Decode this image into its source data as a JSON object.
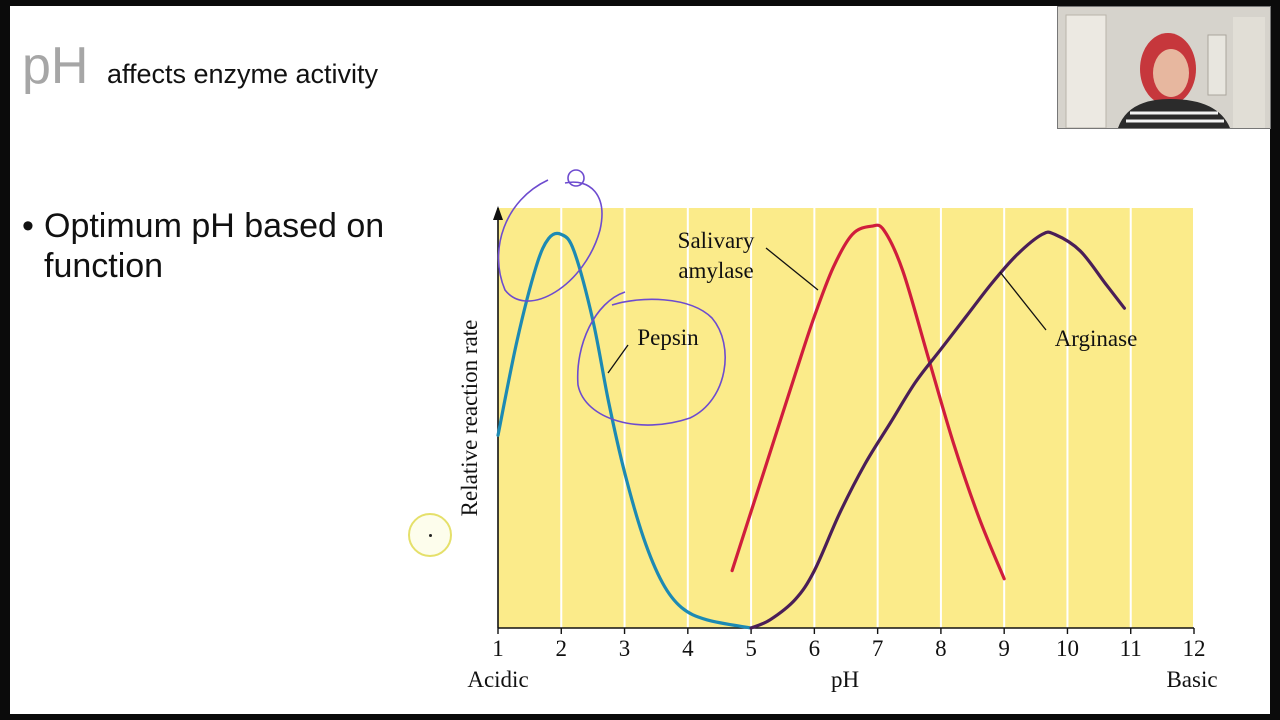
{
  "slide": {
    "title_ph": "pH",
    "title_rest": "affects enzyme activity",
    "bullet": "Optimum pH based on function"
  },
  "webcam": {
    "description": "presenter-webcam"
  },
  "colors": {
    "plot_bg": "#fbeb8a",
    "pepsin": "#1d8ab3",
    "amylase": "#d01d3c",
    "arginase": "#4a1e57",
    "annotation": "#6d4bcf"
  },
  "chart_data": {
    "type": "line",
    "title": "",
    "xlabel": "pH",
    "ylabel": "Relative reaction rate",
    "x_ticks": [
      1,
      2,
      3,
      4,
      5,
      6,
      7,
      8,
      9,
      10,
      11,
      12
    ],
    "x_ends": {
      "left": "Acidic",
      "right": "Basic"
    },
    "xlim": [
      1,
      12
    ],
    "ylim": [
      0,
      1
    ],
    "grid": "vertical",
    "series": [
      {
        "name": "Pepsin",
        "color": "#1d8ab3",
        "points": [
          [
            1.0,
            0.47
          ],
          [
            1.3,
            0.7
          ],
          [
            1.6,
            0.88
          ],
          [
            1.8,
            0.95
          ],
          [
            2.0,
            0.96
          ],
          [
            2.2,
            0.92
          ],
          [
            2.5,
            0.75
          ],
          [
            2.75,
            0.55
          ],
          [
            3.0,
            0.38
          ],
          [
            3.3,
            0.22
          ],
          [
            3.6,
            0.11
          ],
          [
            3.9,
            0.05
          ],
          [
            4.3,
            0.02
          ],
          [
            5.0,
            0.0
          ]
        ]
      },
      {
        "name": "Salivary amylase",
        "label_lines": [
          "Salivary",
          "amylase"
        ],
        "color": "#d01d3c",
        "points": [
          [
            4.7,
            0.14
          ],
          [
            5.2,
            0.38
          ],
          [
            5.7,
            0.62
          ],
          [
            6.0,
            0.76
          ],
          [
            6.3,
            0.88
          ],
          [
            6.6,
            0.96
          ],
          [
            6.9,
            0.98
          ],
          [
            7.1,
            0.97
          ],
          [
            7.4,
            0.87
          ],
          [
            7.8,
            0.66
          ],
          [
            8.2,
            0.45
          ],
          [
            8.6,
            0.27
          ],
          [
            9.0,
            0.12
          ]
        ]
      },
      {
        "name": "Arginase",
        "color": "#4a1e57",
        "points": [
          [
            5.0,
            0.0
          ],
          [
            5.3,
            0.02
          ],
          [
            5.7,
            0.07
          ],
          [
            6.0,
            0.14
          ],
          [
            6.4,
            0.28
          ],
          [
            6.8,
            0.4
          ],
          [
            7.2,
            0.5
          ],
          [
            7.6,
            0.6
          ],
          [
            8.0,
            0.68
          ],
          [
            8.4,
            0.76
          ],
          [
            8.8,
            0.84
          ],
          [
            9.2,
            0.91
          ],
          [
            9.6,
            0.96
          ],
          [
            9.8,
            0.96
          ],
          [
            10.2,
            0.92
          ],
          [
            10.6,
            0.84
          ],
          [
            10.9,
            0.78
          ]
        ]
      }
    ]
  }
}
